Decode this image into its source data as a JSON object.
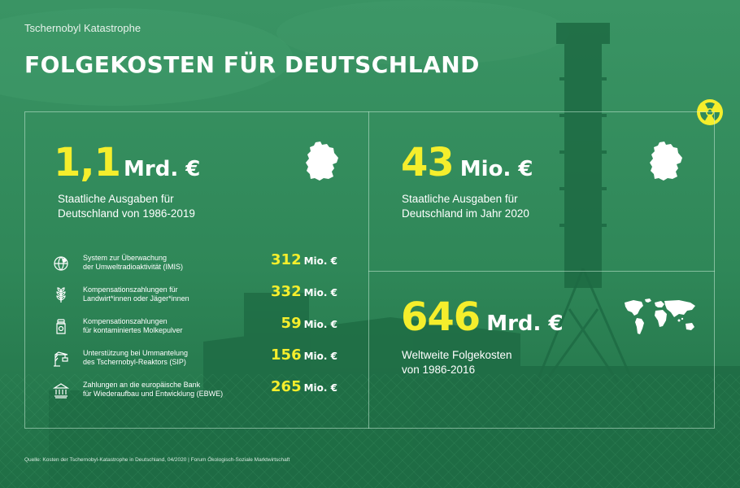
{
  "header": {
    "topic": "Tschernobyl Katastrophe",
    "title": "FOLGEKOSTEN FÜR DEUTSCHLAND"
  },
  "colors": {
    "background": "#2f8a5a",
    "accent_yellow": "#f5ee2c",
    "text": "#ffffff"
  },
  "stats": [
    {
      "value": "1,1",
      "unit": "Mrd. €",
      "desc_line1": "Staatliche Ausgaben für",
      "desc_line2": "Deutschland von 1986-2019",
      "icon": "germany-map-icon"
    },
    {
      "value": "43",
      "unit": "Mio. €",
      "desc_line1": "Staatliche Ausgaben für",
      "desc_line2": "Deutschland im Jahr 2020",
      "icon": "germany-map-icon"
    },
    {
      "value": "646",
      "unit": "Mrd. €",
      "desc_line1": "Weltweite Folgekosten",
      "desc_line2": "von 1986-2016",
      "icon": "world-map-icon"
    }
  ],
  "items": [
    {
      "icon": "globe-monitoring-icon",
      "line1": "System zur Überwachung",
      "line2": "der Umweltradioaktivität (IMIS)",
      "value": "312",
      "unit": "Mio. €"
    },
    {
      "icon": "wheat-icon",
      "line1": "Kompensationszahlungen für",
      "line2": "Landwirt*innen oder Jäger*innen",
      "value": "332",
      "unit": "Mio. €"
    },
    {
      "icon": "milk-jar-icon",
      "line1": "Kompensationszahlungen",
      "line2": "für kontaminiertes Molkepulver",
      "value": "59",
      "unit": "Mio. €"
    },
    {
      "icon": "crane-icon",
      "line1": "Unterstützung bei Ummantelung",
      "line2": "des Tschernobyl-Reaktors (SIP)",
      "value": "156",
      "unit": "Mio. €"
    },
    {
      "icon": "bank-icon",
      "line1": "Zahlungen an die europäische Bank",
      "line2": "für Wiederaufbau und Entwicklung (EBWE)",
      "value": "265",
      "unit": "Mio. €"
    }
  ],
  "source": "Quelle: Kosten der Tschernobyl-Katastrophe in Deutschland, 04/2020 | Forum Ökologisch-Soziale Marktwirtschaft",
  "hazard_icon": "radiation-hazard-icon"
}
